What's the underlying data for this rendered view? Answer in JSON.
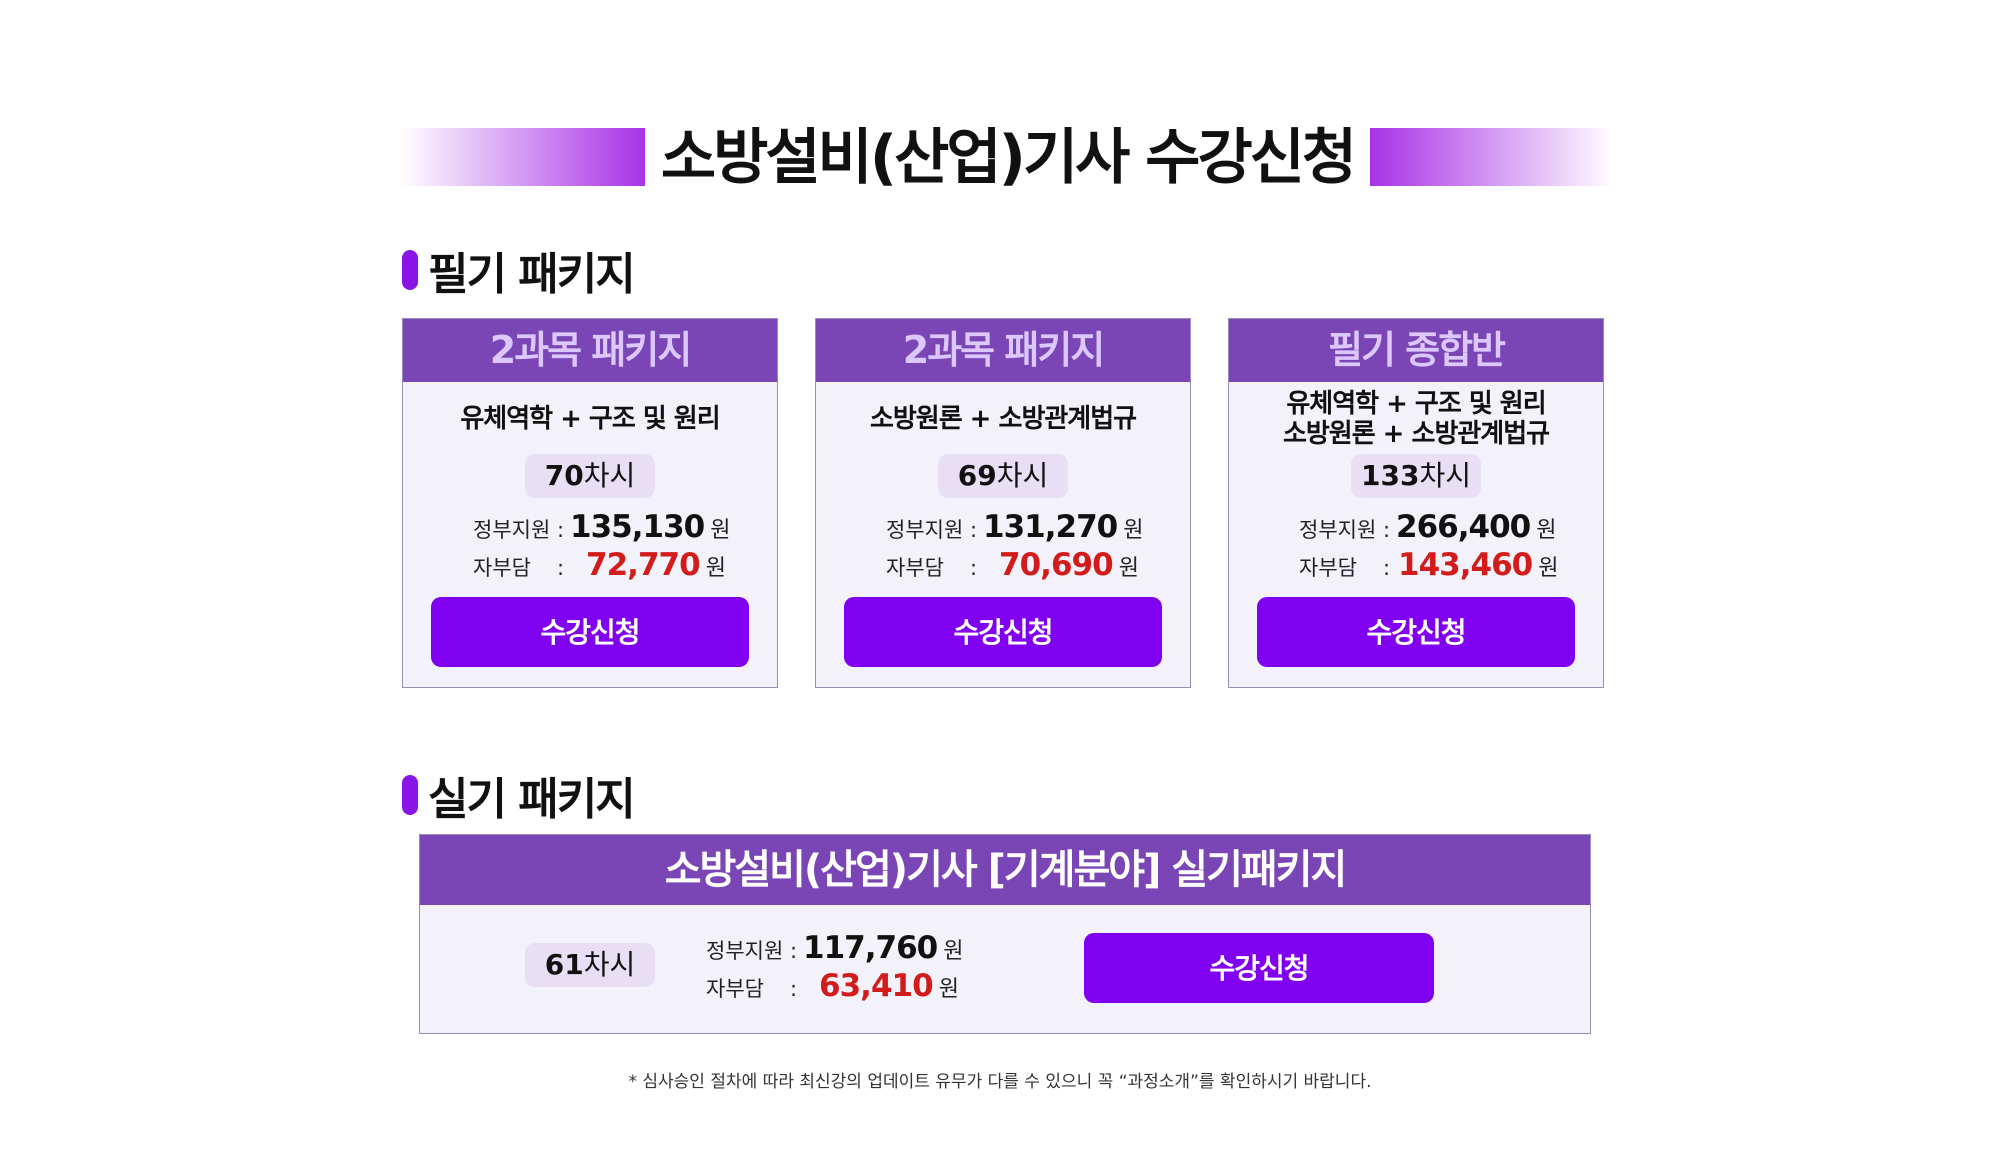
{
  "page_title": "소방설비(산업)기사 수강신청",
  "written_section": {
    "title": "필기 패키지",
    "cards": [
      {
        "header": "2과목 패키지",
        "subjects": [
          "유체역학 + 구조 및 원리"
        ],
        "sessions_num": "70",
        "sessions_unit": "차시",
        "gov_label": "정부지원 :",
        "gov_price": "135,130",
        "self_label": "자부담",
        "self_colon": ":",
        "self_price": "72,770",
        "won": "원",
        "button": "수강신청"
      },
      {
        "header": "2과목 패키지",
        "subjects": [
          "소방원론 + 소방관계법규"
        ],
        "sessions_num": "69",
        "sessions_unit": "차시",
        "gov_label": "정부지원 :",
        "gov_price": "131,270",
        "self_label": "자부담",
        "self_colon": ":",
        "self_price": "70,690",
        "won": "원",
        "button": "수강신청"
      },
      {
        "header": "필기 종합반",
        "subjects": [
          "유체역학 + 구조 및 원리",
          "소방원론 + 소방관계법규"
        ],
        "sessions_num": "133",
        "sessions_unit": "차시",
        "gov_label": "정부지원 :",
        "gov_price": "266,400",
        "self_label": "자부담",
        "self_colon": ":",
        "self_price": "143,460",
        "won": "원",
        "button": "수강신청"
      }
    ]
  },
  "practical_section": {
    "title": "실기 패키지",
    "card": {
      "header": "소방설비(산업)기사 [기계분야] 실기패키지",
      "sessions_num": "61",
      "sessions_unit": "차시",
      "gov_label": "정부지원 :",
      "gov_price": "117,760",
      "self_label": "자부담",
      "self_colon": ":",
      "self_price": "63,410",
      "won": "원",
      "button": "수강신청"
    }
  },
  "footnote": "* 심사승인 절차에 따라 최신강의 업데이트 유무가 다를 수 있으니 꼭 “과정소개”를 확인하시기 바랍니다.",
  "colors": {
    "accent_purple": "#8000f0",
    "header_purple": "#7a45b5",
    "price_red": "#d21c1c",
    "card_bg": "#f3f2fb"
  }
}
